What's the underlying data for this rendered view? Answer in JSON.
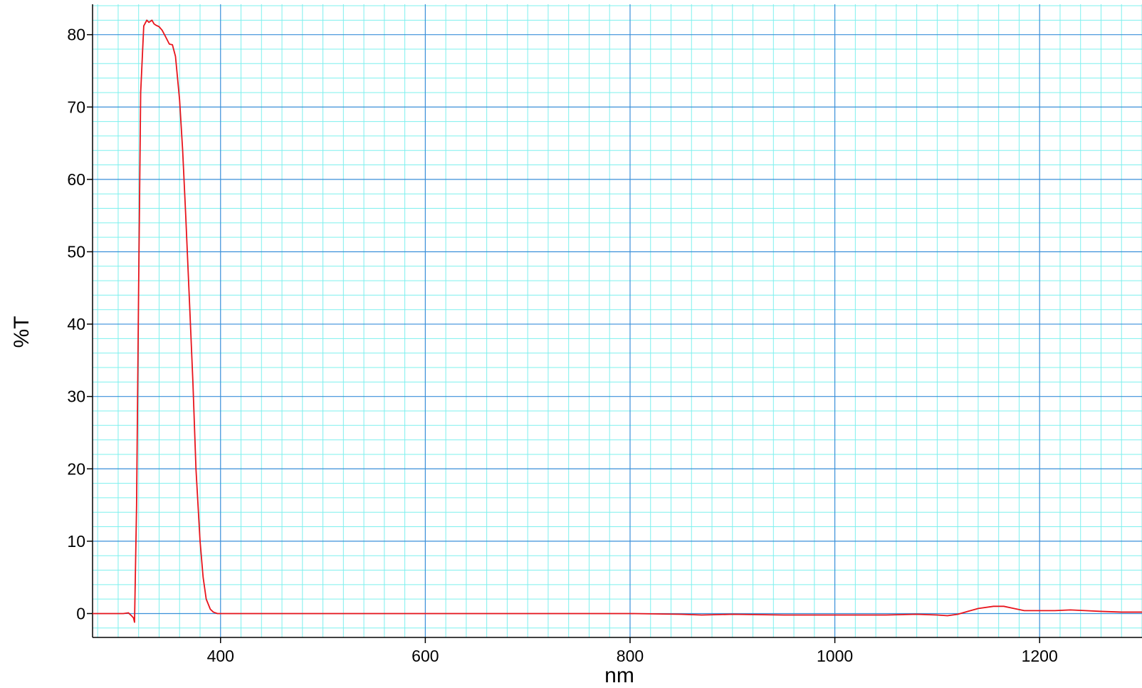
{
  "chart_data": {
    "type": "line",
    "title": "",
    "xlabel": "nm",
    "ylabel": "%T",
    "xlim": [
      275,
      1300
    ],
    "ylim": [
      -3.3,
      84.2
    ],
    "x_ticks": [
      400,
      600,
      800,
      1000,
      1200
    ],
    "y_ticks": [
      0,
      10,
      20,
      30,
      40,
      50,
      60,
      70,
      80
    ],
    "grid": "major and minor",
    "legend": "none",
    "colors": {
      "line": "#e8141c",
      "major_grid": "#3a8fd9",
      "minor_grid": "#7ef0ee",
      "axis": "#000000"
    },
    "series": [
      {
        "x": [
          275,
          300,
          305,
          310,
          313,
          315,
          316,
          318,
          320,
          322,
          325,
          328,
          330,
          333,
          335,
          337,
          340,
          343,
          346,
          350,
          353,
          356,
          360,
          363,
          366,
          370,
          373,
          376,
          380,
          383,
          386,
          390,
          393,
          395,
          397,
          400,
          403,
          410,
          450,
          600,
          800,
          850,
          870,
          900,
          950,
          1000,
          1050,
          1080,
          1100,
          1110,
          1120,
          1130,
          1140,
          1155,
          1165,
          1175,
          1185,
          1200,
          1215,
          1230,
          1245,
          1260,
          1280,
          1300
        ],
        "y": [
          0,
          0,
          0,
          0.1,
          -0.3,
          -0.6,
          -1.2,
          15,
          45,
          72,
          81.2,
          82,
          81.7,
          82,
          81.5,
          81.3,
          81.1,
          80.6,
          79.8,
          78.7,
          78.6,
          77,
          71,
          64,
          55,
          42,
          32,
          20,
          10,
          5,
          2,
          0.6,
          0.2,
          0.1,
          0,
          0,
          0,
          0,
          0,
          0,
          0,
          -0.1,
          -0.2,
          -0.1,
          -0.2,
          -0.2,
          -0.2,
          -0.1,
          -0.2,
          -0.3,
          -0.1,
          0.3,
          0.7,
          1.0,
          1.0,
          0.7,
          0.4,
          0.4,
          0.4,
          0.5,
          0.4,
          0.3,
          0.2,
          0.2
        ]
      }
    ]
  }
}
